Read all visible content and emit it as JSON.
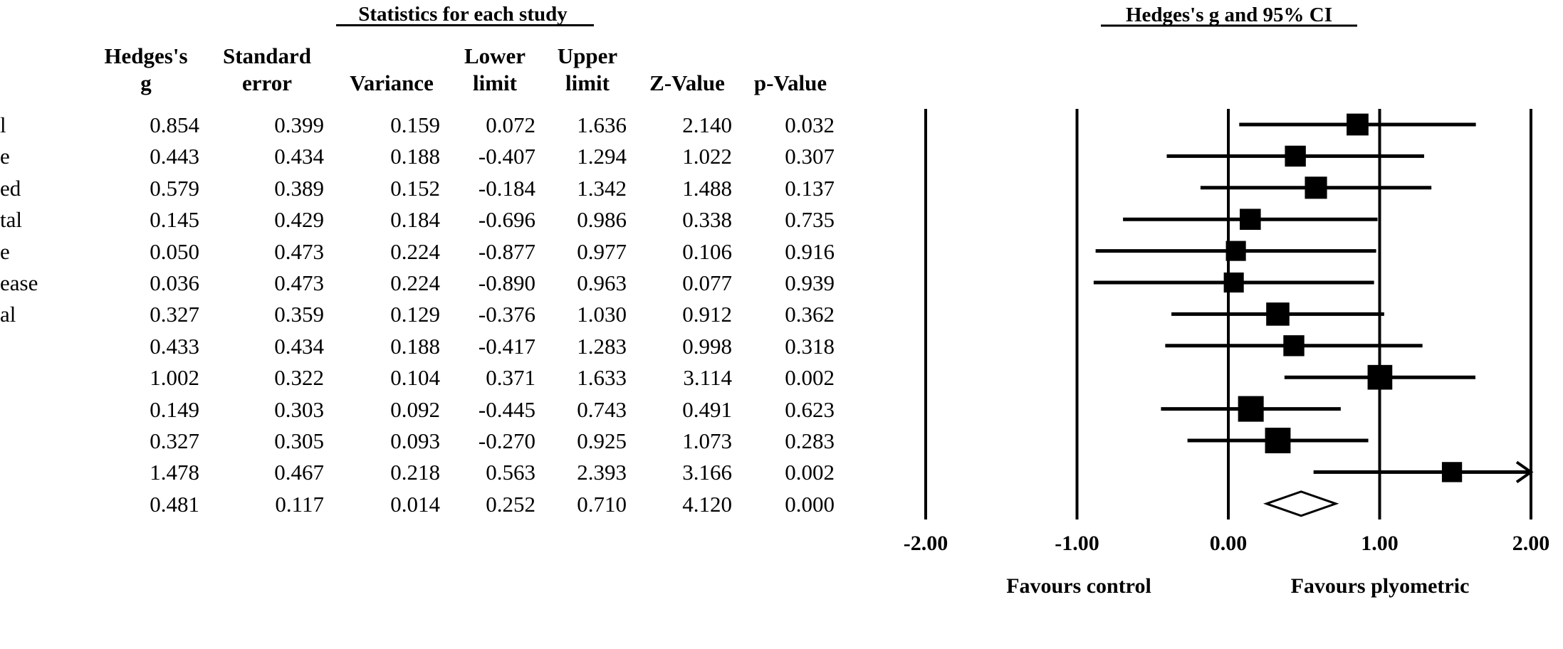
{
  "table": {
    "group_title": "Statistics for each study",
    "headers": [
      {
        "line1": "Hedges's",
        "line2": "g"
      },
      {
        "line1": "Standard",
        "line2": "error"
      },
      {
        "line1": "",
        "line2": "Variance"
      },
      {
        "line1": "Lower",
        "line2": "limit"
      },
      {
        "line1": "Upper",
        "line2": "limit"
      },
      {
        "line1": "",
        "line2": "Z-Value"
      },
      {
        "line1": "",
        "line2": "p-Value"
      }
    ],
    "row_labels": [
      "l",
      "e",
      "ed",
      "tal",
      "e",
      "ease",
      "al",
      "",
      "",
      "",
      "",
      "",
      ""
    ],
    "rows": [
      [
        "0.854",
        "0.399",
        "0.159",
        "0.072",
        "1.636",
        "2.140",
        "0.032"
      ],
      [
        "0.443",
        "0.434",
        "0.188",
        "-0.407",
        "1.294",
        "1.022",
        "0.307"
      ],
      [
        "0.579",
        "0.389",
        "0.152",
        "-0.184",
        "1.342",
        "1.488",
        "0.137"
      ],
      [
        "0.145",
        "0.429",
        "0.184",
        "-0.696",
        "0.986",
        "0.338",
        "0.735"
      ],
      [
        "0.050",
        "0.473",
        "0.224",
        "-0.877",
        "0.977",
        "0.106",
        "0.916"
      ],
      [
        "0.036",
        "0.473",
        "0.224",
        "-0.890",
        "0.963",
        "0.077",
        "0.939"
      ],
      [
        "0.327",
        "0.359",
        "0.129",
        "-0.376",
        "1.030",
        "0.912",
        "0.362"
      ],
      [
        "0.433",
        "0.434",
        "0.188",
        "-0.417",
        "1.283",
        "0.998",
        "0.318"
      ],
      [
        "1.002",
        "0.322",
        "0.104",
        "0.371",
        "1.633",
        "3.114",
        "0.002"
      ],
      [
        "0.149",
        "0.303",
        "0.092",
        "-0.445",
        "0.743",
        "0.491",
        "0.623"
      ],
      [
        "0.327",
        "0.305",
        "0.093",
        "-0.270",
        "0.925",
        "1.073",
        "0.283"
      ],
      [
        "1.478",
        "0.467",
        "0.218",
        "0.563",
        "2.393",
        "3.166",
        "0.002"
      ],
      [
        "0.481",
        "0.117",
        "0.014",
        "0.252",
        "0.710",
        "4.120",
        "0.000"
      ]
    ]
  },
  "chart_data": {
    "type": "forest",
    "title": "Hedges's g and 95% CI",
    "xlim": [
      -2,
      2
    ],
    "ticks": [
      -2,
      -1,
      0,
      1,
      2
    ],
    "tick_labels": [
      "-2.00",
      "-1.00",
      "0.00",
      "1.00",
      "2.00"
    ],
    "label_left": "Favours control",
    "label_right": "Favours plyometric",
    "studies": [
      {
        "g": 0.854,
        "lower": 0.072,
        "upper": 1.636,
        "variance": 0.159
      },
      {
        "g": 0.443,
        "lower": -0.407,
        "upper": 1.294,
        "variance": 0.188
      },
      {
        "g": 0.579,
        "lower": -0.184,
        "upper": 1.342,
        "variance": 0.152
      },
      {
        "g": 0.145,
        "lower": -0.696,
        "upper": 0.986,
        "variance": 0.184
      },
      {
        "g": 0.05,
        "lower": -0.877,
        "upper": 0.977,
        "variance": 0.224
      },
      {
        "g": 0.036,
        "lower": -0.89,
        "upper": 0.963,
        "variance": 0.224
      },
      {
        "g": 0.327,
        "lower": -0.376,
        "upper": 1.03,
        "variance": 0.129
      },
      {
        "g": 0.433,
        "lower": -0.417,
        "upper": 1.283,
        "variance": 0.188
      },
      {
        "g": 1.002,
        "lower": 0.371,
        "upper": 1.633,
        "variance": 0.104
      },
      {
        "g": 0.149,
        "lower": -0.445,
        "upper": 0.743,
        "variance": 0.092
      },
      {
        "g": 0.327,
        "lower": -0.27,
        "upper": 0.925,
        "variance": 0.093
      },
      {
        "g": 1.478,
        "lower": 0.563,
        "upper": 2.393,
        "variance": 0.218
      }
    ],
    "summary": {
      "g": 0.481,
      "lower": 0.252,
      "upper": 0.71
    }
  }
}
